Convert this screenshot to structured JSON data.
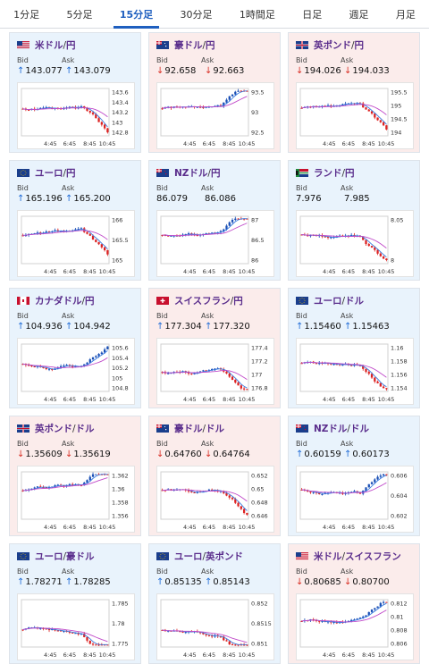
{
  "tabs": [
    {
      "label": "1分足",
      "active": false
    },
    {
      "label": "5分足",
      "active": false
    },
    {
      "label": "15分足",
      "active": true
    },
    {
      "label": "30分足",
      "active": false
    },
    {
      "label": "1時間足",
      "active": false
    },
    {
      "label": "日足",
      "active": false
    },
    {
      "label": "週足",
      "active": false
    },
    {
      "label": "月足",
      "active": false
    }
  ],
  "labels": {
    "bid": "Bid",
    "ask": "Ask"
  },
  "colors": {
    "up_arrow": "#1f6bd6",
    "down_arrow": "#d93025",
    "pair_text": "#5a2d8c",
    "card_up_bg": "#e9f3fc",
    "card_down_bg": "#fbeceb"
  },
  "cards": [
    {
      "base": "米ドル",
      "quote": "円",
      "flag": "us",
      "trend": "up",
      "bid": "143.077",
      "ask": "143.079",
      "bid_arrow": "up",
      "ask_arrow": "up",
      "chart": {
        "yticks": [
          "143.6",
          "143.4",
          "143.2",
          "143",
          "142.8"
        ],
        "xticks": [
          "4:45",
          "6:45",
          "8:45",
          "10:45"
        ]
      }
    },
    {
      "base": "豪ドル",
      "quote": "円",
      "flag": "au",
      "trend": "down",
      "bid": "92.658",
      "ask": "92.663",
      "bid_arrow": "down",
      "ask_arrow": "down",
      "chart": {
        "yticks": [
          "93.5",
          "93",
          "92.5"
        ],
        "xticks": [
          "4:45",
          "6:45",
          "8:45",
          "10:45"
        ]
      }
    },
    {
      "base": "英ポンド",
      "quote": "円",
      "flag": "uk",
      "trend": "down",
      "bid": "194.026",
      "ask": "194.033",
      "bid_arrow": "down",
      "ask_arrow": "down",
      "chart": {
        "yticks": [
          "195.5",
          "195",
          "194.5",
          "194"
        ],
        "xticks": [
          "4:45",
          "6:45",
          "8:45",
          "10:45"
        ]
      }
    },
    {
      "base": "ユーロ",
      "quote": "円",
      "flag": "eu",
      "trend": "up",
      "bid": "165.196",
      "ask": "165.200",
      "bid_arrow": "up",
      "ask_arrow": "up",
      "chart": {
        "yticks": [
          "166",
          "165.5",
          "165"
        ],
        "xticks": [
          "4:45",
          "6:45",
          "8:45",
          "10:45"
        ]
      }
    },
    {
      "base": "NZドル",
      "quote": "円",
      "flag": "nz",
      "trend": "up",
      "bid": "86.079",
      "ask": "86.086",
      "bid_arrow": "",
      "ask_arrow": "",
      "chart": {
        "yticks": [
          "87",
          "86.5",
          "86"
        ],
        "xticks": [
          "4:45",
          "6:45",
          "8:45",
          "10:45"
        ]
      }
    },
    {
      "base": "ランド",
      "quote": "円",
      "flag": "za",
      "trend": "up",
      "bid": "7.976",
      "ask": "7.985",
      "bid_arrow": "",
      "ask_arrow": "",
      "chart": {
        "yticks": [
          "8.05",
          "8"
        ],
        "xticks": [
          "4:45",
          "6:45",
          "8:45",
          "10:45"
        ]
      }
    },
    {
      "base": "カナダドル",
      "quote": "円",
      "flag": "ca",
      "trend": "up",
      "bid": "104.936",
      "ask": "104.942",
      "bid_arrow": "up",
      "ask_arrow": "up",
      "chart": {
        "yticks": [
          "105.6",
          "105.4",
          "105.2",
          "105",
          "104.8"
        ],
        "xticks": [
          "4:45",
          "6:45",
          "8:45",
          "10:45"
        ]
      }
    },
    {
      "base": "スイスフラン",
      "quote": "円",
      "flag": "ch",
      "trend": "down",
      "bid": "177.304",
      "ask": "177.320",
      "bid_arrow": "up",
      "ask_arrow": "up",
      "chart": {
        "yticks": [
          "177.4",
          "177.2",
          "177",
          "176.8"
        ],
        "xticks": [
          "4:45",
          "6:45",
          "8:45",
          "10:45"
        ]
      }
    },
    {
      "base": "ユーロ",
      "quote": "ドル",
      "flag": "eu",
      "trend": "up",
      "bid": "1.15460",
      "ask": "1.15463",
      "bid_arrow": "up",
      "ask_arrow": "up",
      "chart": {
        "yticks": [
          "1.16",
          "1.158",
          "1.156",
          "1.154"
        ],
        "xticks": [
          "4:45",
          "6:45",
          "8:45",
          "10:45"
        ]
      }
    },
    {
      "base": "英ポンド",
      "quote": "ドル",
      "flag": "uk",
      "trend": "down",
      "bid": "1.35609",
      "ask": "1.35619",
      "bid_arrow": "down",
      "ask_arrow": "down",
      "chart": {
        "yticks": [
          "1.362",
          "1.36",
          "1.358",
          "1.356"
        ],
        "xticks": [
          "4:45",
          "6:45",
          "8:45",
          "10:45"
        ]
      }
    },
    {
      "base": "豪ドル",
      "quote": "ドル",
      "flag": "au",
      "trend": "down",
      "bid": "0.64760",
      "ask": "0.64764",
      "bid_arrow": "down",
      "ask_arrow": "down",
      "chart": {
        "yticks": [
          "0.652",
          "0.65",
          "0.648",
          "0.646"
        ],
        "xticks": [
          "4:45",
          "6:45",
          "8:45",
          "10:45"
        ]
      }
    },
    {
      "base": "NZドル",
      "quote": "ドル",
      "flag": "nz",
      "trend": "up",
      "bid": "0.60159",
      "ask": "0.60173",
      "bid_arrow": "up",
      "ask_arrow": "up",
      "chart": {
        "yticks": [
          "0.606",
          "0.604",
          "0.602"
        ],
        "xticks": [
          "4:45",
          "6:45",
          "8:45",
          "10:45"
        ]
      }
    },
    {
      "base": "ユーロ",
      "quote": "豪ドル",
      "flag": "eu",
      "trend": "up",
      "bid": "1.78271",
      "ask": "1.78285",
      "bid_arrow": "up",
      "ask_arrow": "up",
      "chart": {
        "yticks": [
          "1.785",
          "1.78",
          "1.775"
        ],
        "xticks": [
          "4:45",
          "6:45",
          "8:45",
          "10:45"
        ]
      }
    },
    {
      "base": "ユーロ",
      "quote": "英ポンド",
      "flag": "eu",
      "trend": "up",
      "bid": "0.85135",
      "ask": "0.85143",
      "bid_arrow": "up",
      "ask_arrow": "up",
      "chart": {
        "yticks": [
          "0.852",
          "0.8515",
          "0.851"
        ],
        "xticks": [
          "4:45",
          "6:45",
          "8:45",
          "10:45"
        ]
      }
    },
    {
      "base": "米ドル",
      "quote": "スイスフラン",
      "flag": "us",
      "trend": "down",
      "bid": "0.80685",
      "ask": "0.80700",
      "bid_arrow": "down",
      "ask_arrow": "down",
      "chart": {
        "yticks": [
          "0.812",
          "0.81",
          "0.808",
          "0.806"
        ],
        "xticks": [
          "4:45",
          "6:45",
          "8:45",
          "10:45"
        ]
      }
    }
  ]
}
